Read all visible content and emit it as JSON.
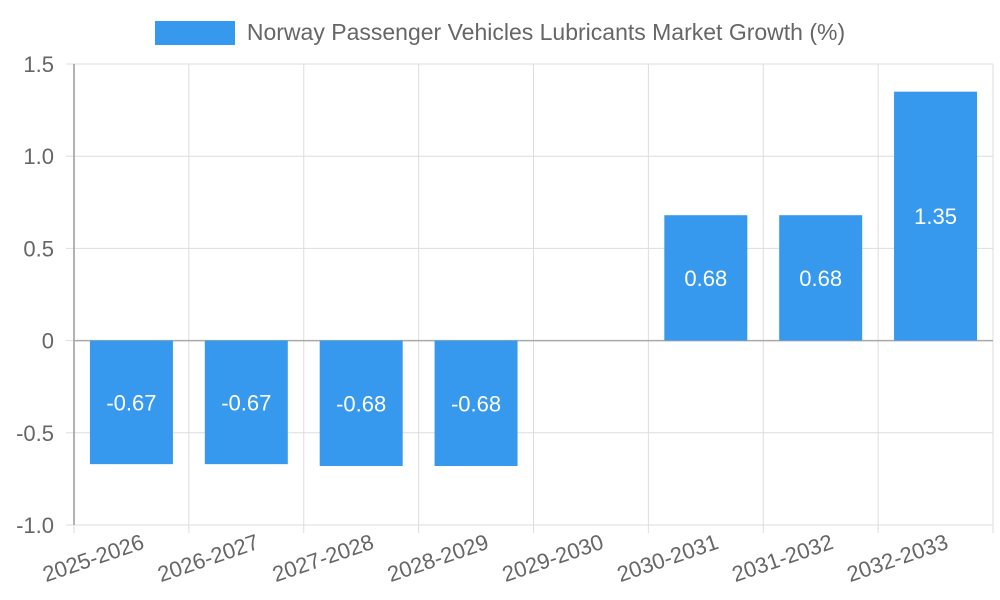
{
  "chart_data": {
    "type": "bar",
    "categories": [
      "2025-2026",
      "2026-2027",
      "2027-2028",
      "2028-2029",
      "2029-2030",
      "2030-2031",
      "2031-2032",
      "2032-2033"
    ],
    "series": [
      {
        "name": "Norway Passenger Vehicles Lubricants Market Growth (%)",
        "values": [
          -0.67,
          -0.67,
          -0.68,
          -0.68,
          0,
          0.68,
          0.68,
          1.35
        ],
        "data_labels": [
          "-0.67",
          "-0.67",
          "-0.68",
          "-0.68",
          "",
          "0.68",
          "0.68",
          "1.35"
        ]
      }
    ],
    "ylim": [
      -1.0,
      1.5
    ],
    "y_ticks": [
      "1.5",
      "1.0",
      "0.5",
      "0",
      "-0.5",
      "-1.0"
    ],
    "grid": true,
    "legend_position": "top-center",
    "colors": {
      "bar": "#3799ED",
      "grid": "#dddddd",
      "axis": "#999999",
      "zero_line": "#aaaaaa",
      "tick_text": "#666666",
      "data_label": "#ffffff"
    }
  }
}
